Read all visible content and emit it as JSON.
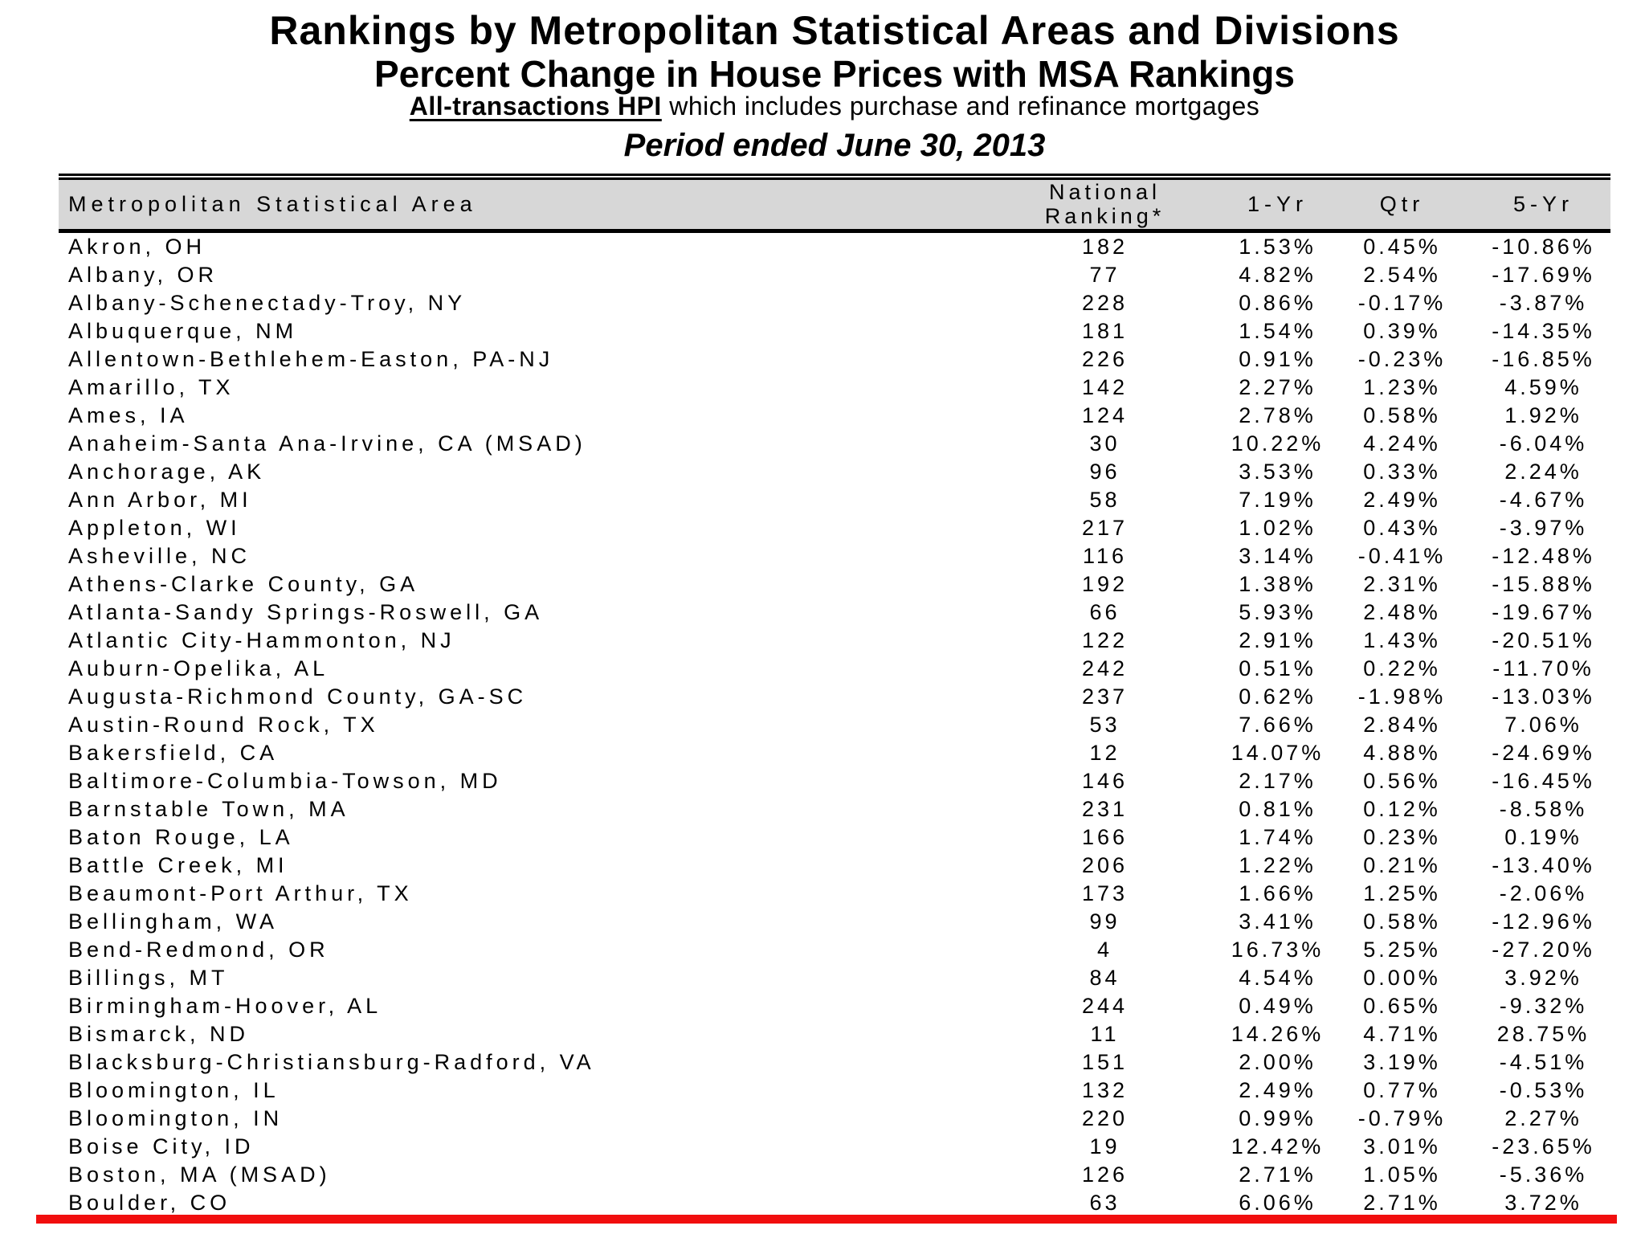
{
  "title": "Rankings by Metropolitan Statistical Areas and Divisions",
  "subtitle": "Percent Change in House Prices with MSA Rankings",
  "description": {
    "emphasis": "All-transactions HPI",
    "rest": " which includes purchase and refinance mortgages"
  },
  "period": "Period ended June 30, 2013",
  "highlight_color": "#f10e0e",
  "table": {
    "columns": [
      "Metropolitan Statistical Area",
      "National Ranking*",
      "1-Yr",
      "Qtr",
      "5-Yr"
    ],
    "rows": [
      {
        "msa": "Akron, OH",
        "ranking": "182",
        "yr1": "1.53%",
        "qtr": "0.45%",
        "yr5": "-10.86%"
      },
      {
        "msa": "Albany, OR",
        "ranking": "77",
        "yr1": "4.82%",
        "qtr": "2.54%",
        "yr5": "-17.69%"
      },
      {
        "msa": "Albany-Schenectady-Troy, NY",
        "ranking": "228",
        "yr1": "0.86%",
        "qtr": "-0.17%",
        "yr5": "-3.87%"
      },
      {
        "msa": "Albuquerque, NM",
        "ranking": "181",
        "yr1": "1.54%",
        "qtr": "0.39%",
        "yr5": "-14.35%"
      },
      {
        "msa": "Allentown-Bethlehem-Easton, PA-NJ",
        "ranking": "226",
        "yr1": "0.91%",
        "qtr": "-0.23%",
        "yr5": "-16.85%"
      },
      {
        "msa": "Amarillo, TX",
        "ranking": "142",
        "yr1": "2.27%",
        "qtr": "1.23%",
        "yr5": "4.59%"
      },
      {
        "msa": "Ames, IA",
        "ranking": "124",
        "yr1": "2.78%",
        "qtr": "0.58%",
        "yr5": "1.92%"
      },
      {
        "msa": "Anaheim-Santa Ana-Irvine, CA  (MSAD)",
        "ranking": "30",
        "yr1": "10.22%",
        "qtr": "4.24%",
        "yr5": "-6.04%"
      },
      {
        "msa": "Anchorage, AK",
        "ranking": "96",
        "yr1": "3.53%",
        "qtr": "0.33%",
        "yr5": "2.24%"
      },
      {
        "msa": "Ann Arbor, MI",
        "ranking": "58",
        "yr1": "7.19%",
        "qtr": "2.49%",
        "yr5": "-4.67%"
      },
      {
        "msa": "Appleton, WI",
        "ranking": "217",
        "yr1": "1.02%",
        "qtr": "0.43%",
        "yr5": "-3.97%"
      },
      {
        "msa": "Asheville, NC",
        "ranking": "116",
        "yr1": "3.14%",
        "qtr": "-0.41%",
        "yr5": "-12.48%"
      },
      {
        "msa": "Athens-Clarke County, GA",
        "ranking": "192",
        "yr1": "1.38%",
        "qtr": "2.31%",
        "yr5": "-15.88%"
      },
      {
        "msa": "Atlanta-Sandy Springs-Roswell, GA",
        "ranking": "66",
        "yr1": "5.93%",
        "qtr": "2.48%",
        "yr5": "-19.67%"
      },
      {
        "msa": "Atlantic City-Hammonton, NJ",
        "ranking": "122",
        "yr1": "2.91%",
        "qtr": "1.43%",
        "yr5": "-20.51%"
      },
      {
        "msa": "Auburn-Opelika, AL",
        "ranking": "242",
        "yr1": "0.51%",
        "qtr": "0.22%",
        "yr5": "-11.70%"
      },
      {
        "msa": "Augusta-Richmond County, GA-SC",
        "ranking": "237",
        "yr1": "0.62%",
        "qtr": "-1.98%",
        "yr5": "-13.03%"
      },
      {
        "msa": "Austin-Round Rock, TX",
        "ranking": "53",
        "yr1": "7.66%",
        "qtr": "2.84%",
        "yr5": "7.06%"
      },
      {
        "msa": "Bakersfield, CA",
        "ranking": "12",
        "yr1": "14.07%",
        "qtr": "4.88%",
        "yr5": "-24.69%"
      },
      {
        "msa": "Baltimore-Columbia-Towson, MD",
        "ranking": "146",
        "yr1": "2.17%",
        "qtr": "0.56%",
        "yr5": "-16.45%"
      },
      {
        "msa": "Barnstable Town, MA",
        "ranking": "231",
        "yr1": "0.81%",
        "qtr": "0.12%",
        "yr5": "-8.58%"
      },
      {
        "msa": "Baton Rouge, LA",
        "ranking": "166",
        "yr1": "1.74%",
        "qtr": "0.23%",
        "yr5": "0.19%"
      },
      {
        "msa": "Battle Creek, MI",
        "ranking": "206",
        "yr1": "1.22%",
        "qtr": "0.21%",
        "yr5": "-13.40%"
      },
      {
        "msa": "Beaumont-Port Arthur, TX",
        "ranking": "173",
        "yr1": "1.66%",
        "qtr": "1.25%",
        "yr5": "-2.06%"
      },
      {
        "msa": "Bellingham, WA",
        "ranking": "99",
        "yr1": "3.41%",
        "qtr": "0.58%",
        "yr5": "-12.96%"
      },
      {
        "msa": "Bend-Redmond, OR",
        "ranking": "4",
        "yr1": "16.73%",
        "qtr": "5.25%",
        "yr5": "-27.20%"
      },
      {
        "msa": "Billings, MT",
        "ranking": "84",
        "yr1": "4.54%",
        "qtr": "0.00%",
        "yr5": "3.92%"
      },
      {
        "msa": "Birmingham-Hoover, AL",
        "ranking": "244",
        "yr1": "0.49%",
        "qtr": "0.65%",
        "yr5": "-9.32%"
      },
      {
        "msa": "Bismarck, ND",
        "ranking": "11",
        "yr1": "14.26%",
        "qtr": "4.71%",
        "yr5": "28.75%"
      },
      {
        "msa": "Blacksburg-Christiansburg-Radford, VA",
        "ranking": "151",
        "yr1": "2.00%",
        "qtr": "3.19%",
        "yr5": "-4.51%"
      },
      {
        "msa": "Bloomington, IL",
        "ranking": "132",
        "yr1": "2.49%",
        "qtr": "0.77%",
        "yr5": "-0.53%"
      },
      {
        "msa": "Bloomington, IN",
        "ranking": "220",
        "yr1": "0.99%",
        "qtr": "-0.79%",
        "yr5": "2.27%"
      },
      {
        "msa": "Boise City, ID",
        "ranking": "19",
        "yr1": "12.42%",
        "qtr": "3.01%",
        "yr5": "-23.65%"
      },
      {
        "msa": "Boston, MA  (MSAD)",
        "ranking": "126",
        "yr1": "2.71%",
        "qtr": "1.05%",
        "yr5": "-5.36%"
      },
      {
        "msa": "Boulder, CO",
        "ranking": "63",
        "yr1": "6.06%",
        "qtr": "2.71%",
        "yr5": "3.72%"
      }
    ]
  }
}
